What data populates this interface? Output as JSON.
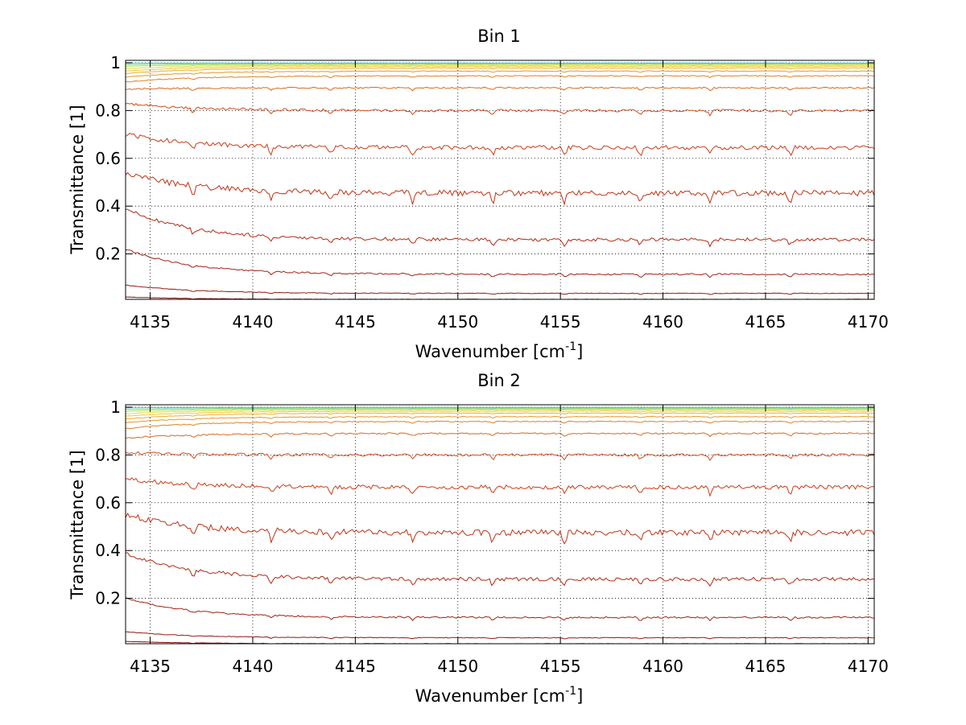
{
  "chart_data": [
    {
      "type": "line",
      "title": "Bin 1",
      "xlabel_main": "Wavenumber [cm",
      "xlabel_sup": "-1",
      "xlabel_end": "]",
      "ylabel": "Transmittance [1]",
      "xlim": [
        4133.8,
        4170.3
      ],
      "ylim": [
        0.01,
        1.01
      ],
      "xticks": [
        4135,
        4140,
        4145,
        4150,
        4155,
        4160,
        4165,
        4170
      ],
      "xtick_labels": [
        "4135",
        "4140",
        "4145",
        "4150",
        "4155",
        "4160",
        "4165",
        "4170"
      ],
      "yticks": [
        0.2,
        0.4,
        0.6,
        0.8,
        1
      ],
      "ytick_labels": [
        "0.2",
        "0.4",
        "0.6",
        "0.8",
        "1"
      ],
      "grid": true,
      "series": [
        {
          "color": "#8b0f0f",
          "start": 0.02,
          "end": 0.01
        },
        {
          "color": "#8e1a10",
          "start": 0.07,
          "end": 0.035
        },
        {
          "color": "#a02212",
          "start": 0.22,
          "end": 0.115
        },
        {
          "color": "#b02a14",
          "start": 0.39,
          "end": 0.26
        },
        {
          "color": "#c03216",
          "start": 0.54,
          "end": 0.455
        },
        {
          "color": "#cc3c18",
          "start": 0.7,
          "end": 0.645
        },
        {
          "color": "#d24c1c",
          "start": 0.83,
          "end": 0.8
        },
        {
          "color": "#d66a22",
          "start": 0.89,
          "end": 0.895
        },
        {
          "color": "#dc8226",
          "start": 0.92,
          "end": 0.945
        },
        {
          "color": "#e29a2a",
          "start": 0.94,
          "end": 0.965
        },
        {
          "color": "#e8b02e",
          "start": 0.955,
          "end": 0.978
        },
        {
          "color": "#eec832",
          "start": 0.965,
          "end": 0.985
        },
        {
          "color": "#e2d83a",
          "start": 0.975,
          "end": 0.99
        },
        {
          "color": "#b8dc50",
          "start": 0.985,
          "end": 0.994
        },
        {
          "color": "#78d68a",
          "start": 0.992,
          "end": 0.997
        },
        {
          "color": "#3ccce0",
          "start": 0.998,
          "end": 0.999
        }
      ]
    },
    {
      "type": "line",
      "title": "Bin 2",
      "xlabel_main": "Wavenumber [cm",
      "xlabel_sup": "-1",
      "xlabel_end": "]",
      "ylabel": "Transmittance [1]",
      "xlim": [
        4133.8,
        4170.3
      ],
      "ylim": [
        0.01,
        1.01
      ],
      "xticks": [
        4135,
        4140,
        4145,
        4150,
        4155,
        4160,
        4165,
        4170
      ],
      "xtick_labels": [
        "4135",
        "4140",
        "4145",
        "4150",
        "4155",
        "4160",
        "4165",
        "4170"
      ],
      "yticks": [
        0.2,
        0.4,
        0.6,
        0.8,
        1
      ],
      "ytick_labels": [
        "0.2",
        "0.4",
        "0.6",
        "0.8",
        "1"
      ],
      "grid": true,
      "series": [
        {
          "color": "#8b0f0f",
          "start": 0.02,
          "end": 0.01
        },
        {
          "color": "#8e1a10",
          "start": 0.06,
          "end": 0.035
        },
        {
          "color": "#a02212",
          "start": 0.2,
          "end": 0.12
        },
        {
          "color": "#b02a14",
          "start": 0.39,
          "end": 0.28
        },
        {
          "color": "#c03216",
          "start": 0.55,
          "end": 0.475
        },
        {
          "color": "#cc3c18",
          "start": 0.7,
          "end": 0.665
        },
        {
          "color": "#d24c1c",
          "start": 0.81,
          "end": 0.8
        },
        {
          "color": "#d66a22",
          "start": 0.87,
          "end": 0.89
        },
        {
          "color": "#dc8226",
          "start": 0.91,
          "end": 0.94
        },
        {
          "color": "#e29a2a",
          "start": 0.935,
          "end": 0.96
        },
        {
          "color": "#e8b02e",
          "start": 0.95,
          "end": 0.975
        },
        {
          "color": "#eec832",
          "start": 0.962,
          "end": 0.983
        },
        {
          "color": "#e2d83a",
          "start": 0.972,
          "end": 0.989
        },
        {
          "color": "#b8dc50",
          "start": 0.982,
          "end": 0.993
        },
        {
          "color": "#78d68a",
          "start": 0.99,
          "end": 0.996
        },
        {
          "color": "#3ccce0",
          "start": 0.997,
          "end": 0.999
        }
      ]
    }
  ]
}
